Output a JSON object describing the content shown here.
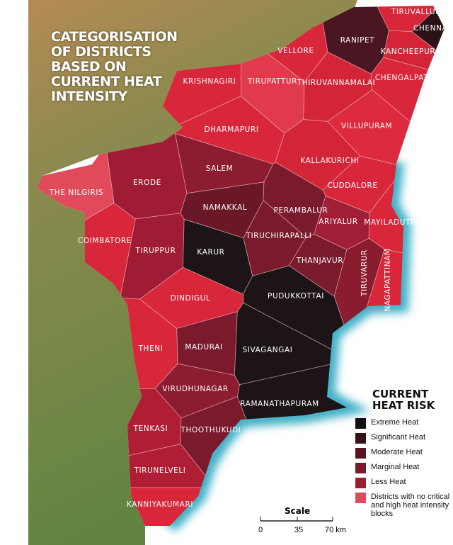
{
  "header": {
    "title": "CATEGORISATION OF DISTRICTS BASED ON CURRENT HEAT INTENSITY"
  },
  "districts": [
    {
      "name": "TIRUVALLUR",
      "color": "#d8263a"
    },
    {
      "name": "CHENNAI",
      "color": "#2a1216"
    },
    {
      "name": "RANIPET",
      "color": "#4a1622"
    },
    {
      "name": "VELLORE",
      "color": "#d8263a"
    },
    {
      "name": "KANCHEEPURAM",
      "color": "#d42438"
    },
    {
      "name": "CHENGALPATTU",
      "color": "#d8263a"
    },
    {
      "name": "KRISHNAGIRI",
      "color": "#d8263a"
    },
    {
      "name": "TIRUPATTUR",
      "color": "#e03a4c"
    },
    {
      "name": "THIRUVANNAMALAI",
      "color": "#d42438"
    },
    {
      "name": "DHARMAPURI",
      "color": "#d8263a"
    },
    {
      "name": "VILLUPURAM",
      "color": "#dc2a3e"
    },
    {
      "name": "SALEM",
      "color": "#8c1c30"
    },
    {
      "name": "KALLAKURICHI",
      "color": "#d42438"
    },
    {
      "name": "ERODE",
      "color": "#a01c34"
    },
    {
      "name": "THE NILGIRIS",
      "color": "#e04a5a"
    },
    {
      "name": "CUDDALORE",
      "color": "#d8263a"
    },
    {
      "name": "NAMAKKAL",
      "color": "#6a1728"
    },
    {
      "name": "PERAMBALUR",
      "color": "#7a1a2c"
    },
    {
      "name": "ARIYALUR",
      "color": "#a01e36"
    },
    {
      "name": "MAYILADUTHURAI",
      "color": "#d8263a"
    },
    {
      "name": "COIMBATORE",
      "color": "#d8263a"
    },
    {
      "name": "TIRUPPUR",
      "color": "#a01c34"
    },
    {
      "name": "KARUR",
      "color": "#1c1416"
    },
    {
      "name": "TIRUCHIRAPALLI",
      "color": "#7a1a2c"
    },
    {
      "name": "THANJAVUR",
      "color": "#7a1a2c"
    },
    {
      "name": "TIRUVARUR",
      "color": "#8a1c30"
    },
    {
      "name": "NAGAPATTINAM",
      "color": "#d8263a"
    },
    {
      "name": "PUDUKKOTTAI",
      "color": "#1c1416"
    },
    {
      "name": "DINDIGUL",
      "color": "#d8263a"
    },
    {
      "name": "THENI",
      "color": "#d8263a"
    },
    {
      "name": "MADURAI",
      "color": "#7a1a2c"
    },
    {
      "name": "SIVAGANGAI",
      "color": "#1c1416"
    },
    {
      "name": "VIRUDHUNAGAR",
      "color": "#8c1c30"
    },
    {
      "name": "RAMANATHAPURAM",
      "color": "#1c1416"
    },
    {
      "name": "TENKASI",
      "color": "#b01e36"
    },
    {
      "name": "THOOTHUKUDI",
      "color": "#7a1a2c"
    },
    {
      "name": "TIRUNELVELI",
      "color": "#b01e36"
    },
    {
      "name": "KANNIYAKUMARI",
      "color": "#d8263a"
    }
  ],
  "legend": {
    "title": "CURRENT HEAT RISK",
    "items": [
      {
        "label": "Extreme Heat",
        "color": "#111111"
      },
      {
        "label": "Significant Heat",
        "color": "#3a1018"
      },
      {
        "label": "Moderate Heat",
        "color": "#5a1420"
      },
      {
        "label": "Marginal Heat",
        "color": "#7a1a2a"
      },
      {
        "label": "Less Heat",
        "color": "#9a2030"
      },
      {
        "label": "Districts with no critical and high heat intensity blocks",
        "color": "#e04a5a"
      }
    ]
  },
  "scale": {
    "title": "Scale",
    "labels": [
      "0",
      "35",
      "70 km"
    ]
  }
}
